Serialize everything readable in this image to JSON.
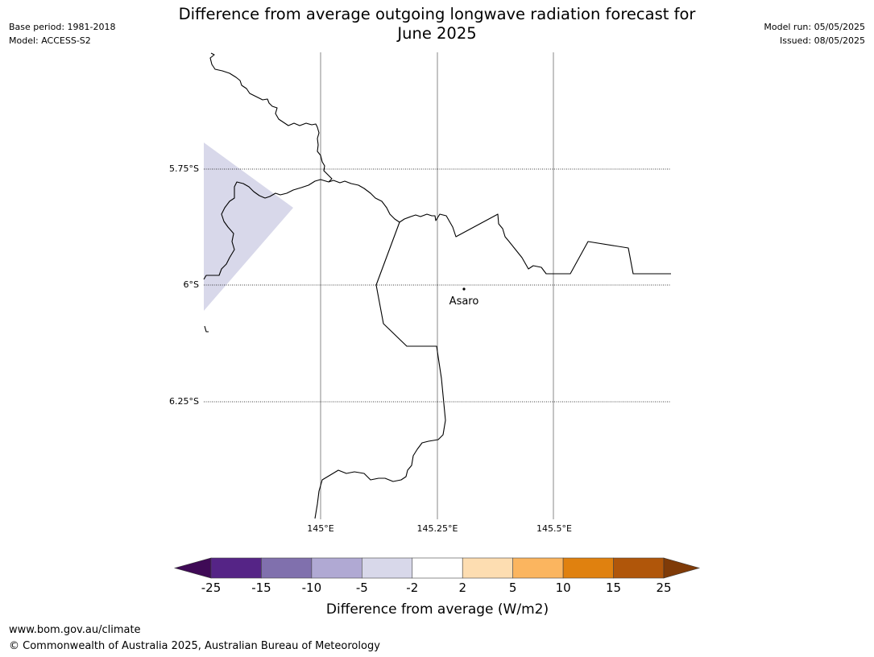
{
  "header": {
    "title_line1": "Difference from average outgoing longwave radiation forecast for",
    "title_line2": "June 2025",
    "base_period": "Base period: 1981-2018",
    "model": "Model: ACCESS-S2",
    "model_run": "Model run: 05/05/2025",
    "issued": "Issued: 08/05/2025"
  },
  "map": {
    "lat_labels": [
      "5.75°S",
      "6°S",
      "6.25°S"
    ],
    "lon_labels": [
      "145°E",
      "145.25°E",
      "145.5°E"
    ],
    "place_label": "Asaro",
    "anomaly_fill_color": "#d8d8ea"
  },
  "colorbar": {
    "label": "Difference from average (W/m2)",
    "ticks": [
      "-25",
      "-15",
      "-10",
      "-5",
      "-2",
      "2",
      "5",
      "10",
      "15",
      "25"
    ],
    "colors": [
      "#3f0a56",
      "#552486",
      "#8070ad",
      "#b0a9d3",
      "#d8d8ea",
      "#ffffff",
      "#fdddb1",
      "#fbb55f",
      "#e0810f",
      "#b0560a",
      "#7f3b08"
    ]
  },
  "footer": {
    "url": "www.bom.gov.au/climate",
    "copyright": "© Commonwealth of Australia 2025, Australian Bureau of Meteorology"
  }
}
